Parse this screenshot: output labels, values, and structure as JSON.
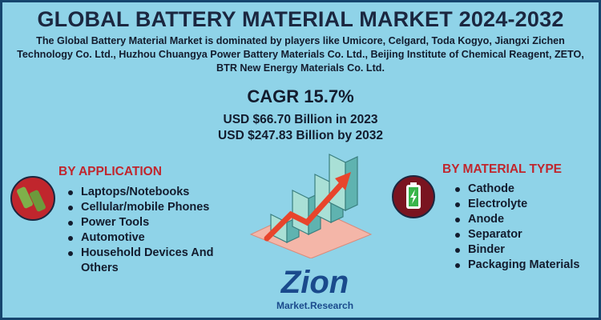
{
  "header": {
    "title": "GLOBAL BATTERY MATERIAL MARKET 2024-2032",
    "description": "The Global Battery Material Market is dominated by players like Umicore, Celgard, Toda Kogyo, Jiangxi Zichen Technology Co. Ltd., Huzhou Chuangya Power Battery Materials Co. Ltd., Beijing Institute of Chemical Reagent, ZETO, BTR New Energy Materials Co. Ltd."
  },
  "cagr": {
    "label": "CAGR 15.7%",
    "lines": [
      "USD $66.70 Billion in 2023",
      "USD $247.83 Billion  by 2032"
    ]
  },
  "application": {
    "heading": "BY APPLICATION",
    "items": [
      "Laptops/Notebooks",
      "Cellular/mobile Phones",
      "Power Tools",
      "Automotive",
      "Household Devices And Others"
    ]
  },
  "material": {
    "heading": "BY MATERIAL TYPE",
    "items": [
      "Cathode",
      "Electrolyte",
      "Anode",
      "Separator",
      "Binder",
      "Packaging Materials"
    ]
  },
  "logo": {
    "name": "Zion",
    "sub": "Market.Research"
  }
}
